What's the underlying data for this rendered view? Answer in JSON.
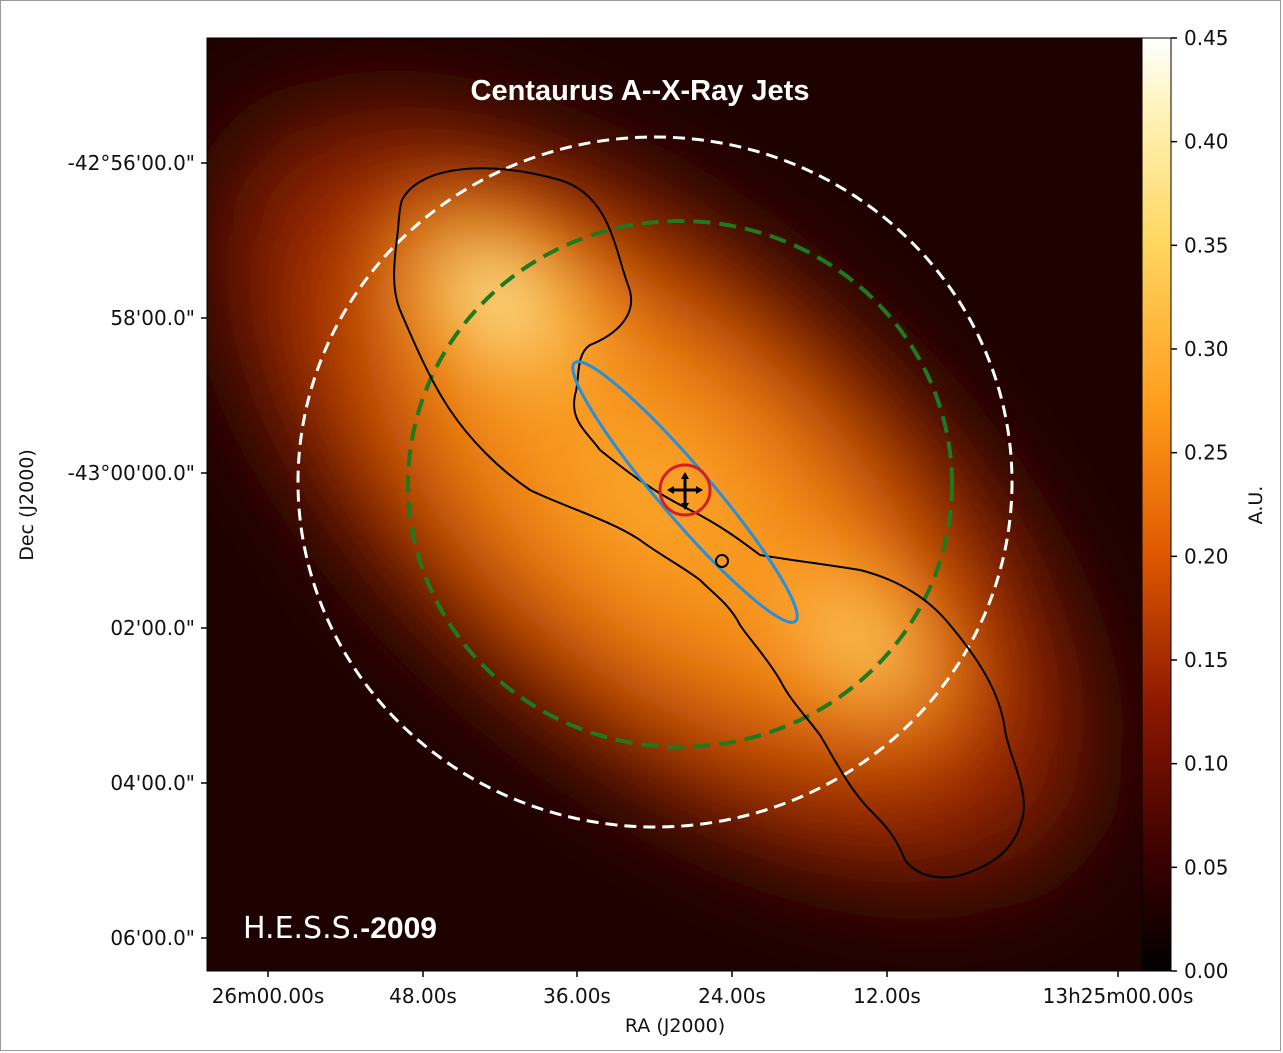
{
  "chart_data": {
    "type": "heatmap",
    "title": "Centaurus A--X-Ray Jets",
    "annotation": {
      "label": "H.E.S.S.",
      "year": "-2009"
    },
    "xlabel": "RA (J2000)",
    "ylabel": "Dec (J2000)",
    "x_ticks": [
      "26m00.00s",
      "48.00s",
      "36.00s",
      "24.00s",
      "12.00s",
      "13h25m00.00s"
    ],
    "y_ticks": [
      "-42°56'00.0\"",
      "58'00.0\"",
      "-43°00'00.0\"",
      "02'00.0\"",
      "04'00.0\"",
      "06'00.0\""
    ],
    "colorbar": {
      "label": "A.U.",
      "range": [
        0.0,
        0.45
      ],
      "ticks": [
        "0.00",
        "0.05",
        "0.10",
        "0.15",
        "0.20",
        "0.25",
        "0.30",
        "0.35",
        "0.40",
        "0.45"
      ],
      "colormap": "afmhot"
    },
    "colors": {
      "white_dashed": "#ffffff",
      "green_dashed": "#1f7a1f",
      "blue_ellipse": "#2a8fd6",
      "red_circle": "#d42020",
      "contour": "#000000"
    }
  }
}
